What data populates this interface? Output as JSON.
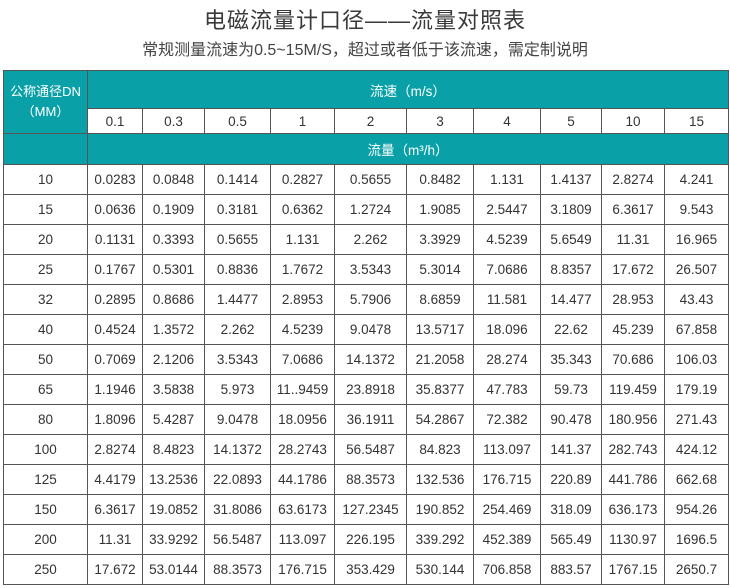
{
  "title": "电磁流量计口径——流量对照表",
  "subtitle": "常规测量流速为0.5~15M/S，超过或者低于该流速，需定制说明",
  "colors": {
    "header": "#0aa0a8"
  },
  "table": {
    "dn_header_line1": "公称通径DN",
    "dn_header_line2": "（MM）",
    "velocity_header": "流速（m/s）",
    "flow_header": "流量（m³/h）",
    "velocities": [
      "0.1",
      "0.3",
      "0.5",
      "1",
      "2",
      "3",
      "4",
      "5",
      "10",
      "15"
    ],
    "rows": [
      {
        "dn": "10",
        "values": [
          "0.0283",
          "0.0848",
          "0.1414",
          "0.2827",
          "0.5655",
          "0.8482",
          "1.131",
          "1.4137",
          "2.8274",
          "4.241"
        ]
      },
      {
        "dn": "15",
        "values": [
          "0.0636",
          "0.1909",
          "0.3181",
          "0.6362",
          "1.2724",
          "1.9085",
          "2.5447",
          "3.1809",
          "6.3617",
          "9.543"
        ]
      },
      {
        "dn": "20",
        "values": [
          "0.1131",
          "0.3393",
          "0.5655",
          "1.131",
          "2.262",
          "3.3929",
          "4.5239",
          "5.6549",
          "11.31",
          "16.965"
        ]
      },
      {
        "dn": "25",
        "values": [
          "0.1767",
          "0.5301",
          "0.8836",
          "1.7672",
          "3.5343",
          "5.3014",
          "7.0686",
          "8.8357",
          "17.672",
          "26.507"
        ]
      },
      {
        "dn": "32",
        "values": [
          "0.2895",
          "0.8686",
          "1.4477",
          "2.8953",
          "5.7906",
          "8.6859",
          "11.581",
          "14.477",
          "28.953",
          "43.43"
        ]
      },
      {
        "dn": "40",
        "values": [
          "0.4524",
          "1.3572",
          "2.262",
          "4.5239",
          "9.0478",
          "13.5717",
          "18.096",
          "22.62",
          "45.239",
          "67.858"
        ]
      },
      {
        "dn": "50",
        "values": [
          "0.7069",
          "2.1206",
          "3.5343",
          "7.0686",
          "14.1372",
          "21.2058",
          "28.274",
          "35.343",
          "70.686",
          "106.03"
        ]
      },
      {
        "dn": "65",
        "values": [
          "1.1946",
          "3.5838",
          "5.973",
          "11..9459",
          "23.8918",
          "35.8377",
          "47.783",
          "59.73",
          "119.459",
          "179.19"
        ]
      },
      {
        "dn": "80",
        "values": [
          "1.8096",
          "5.4287",
          "9.0478",
          "18.0956",
          "36.1911",
          "54.2867",
          "72.382",
          "90.478",
          "180.956",
          "271.43"
        ]
      },
      {
        "dn": "100",
        "values": [
          "2.8274",
          "8.4823",
          "14.1372",
          "28.2743",
          "56.5487",
          "84.823",
          "113.097",
          "141.37",
          "282.743",
          "424.12"
        ]
      },
      {
        "dn": "125",
        "values": [
          "4.4179",
          "13.2536",
          "22.0893",
          "44.1786",
          "88.3573",
          "132.536",
          "176.715",
          "220.89",
          "441.786",
          "662.68"
        ]
      },
      {
        "dn": "150",
        "values": [
          "6.3617",
          "19.0852",
          "31.8086",
          "63.6173",
          "127.2345",
          "190.852",
          "254.469",
          "318.09",
          "636.173",
          "954.26"
        ]
      },
      {
        "dn": "200",
        "values": [
          "11.31",
          "33.9292",
          "56.5487",
          "113.097",
          "226.195",
          "339.292",
          "452.389",
          "565.49",
          "1130.97",
          "1696.5"
        ]
      },
      {
        "dn": "250",
        "values": [
          "17.672",
          "53.0144",
          "88.3573",
          "176.715",
          "353.429",
          "530.144",
          "706.858",
          "883.57",
          "1767.15",
          "2650.7"
        ]
      }
    ]
  }
}
